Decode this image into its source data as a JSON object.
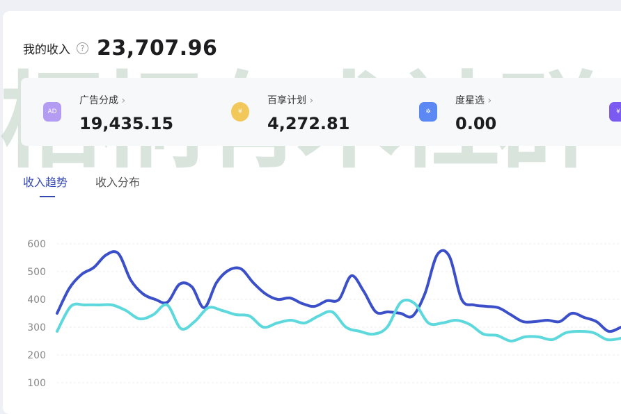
{
  "summary": {
    "label": "我的收入",
    "help_icon": "question-circle-icon",
    "value": "23,707.96"
  },
  "watermark": "梧桐有术社群",
  "stats": [
    {
      "name": "广告分成",
      "value": "19,435.15",
      "icon": "ad-icon",
      "color": "#a88cf0"
    },
    {
      "name": "百享计划",
      "value": "4,272.81",
      "icon": "money-bag-icon",
      "color": "#f3c85a"
    },
    {
      "name": "度星选",
      "value": "0.00",
      "icon": "shop-bag-icon",
      "color": "#4d7cf0"
    },
    {
      "name": "",
      "value": "",
      "icon": "yuan-icon",
      "color": "#7a5af0"
    }
  ],
  "tabs": [
    {
      "label": "收入趋势",
      "active": true
    },
    {
      "label": "收入分布",
      "active": false
    }
  ],
  "chart_data": {
    "type": "line",
    "yticks": [
      "600",
      "500",
      "400",
      "300",
      "200",
      "100"
    ],
    "ylim": [
      100,
      600
    ],
    "grid": true,
    "series": [
      {
        "color": "#3a4fc8",
        "values": [
          350,
          440,
          490,
          515,
          560,
          565,
          470,
          420,
          400,
          390,
          455,
          445,
          370,
          460,
          505,
          510,
          460,
          420,
          400,
          405,
          385,
          375,
          395,
          400,
          485,
          430,
          355,
          355,
          350,
          340,
          420,
          560,
          555,
          400,
          380,
          375,
          370,
          345,
          320,
          320,
          325,
          320,
          350,
          335,
          320,
          285,
          300
        ]
      },
      {
        "color": "#5dd8dc",
        "values": [
          285,
          375,
          380,
          380,
          380,
          360,
          330,
          345,
          380,
          295,
          320,
          370,
          360,
          345,
          340,
          300,
          315,
          325,
          315,
          340,
          355,
          300,
          285,
          275,
          300,
          390,
          385,
          315,
          315,
          325,
          310,
          275,
          270,
          250,
          265,
          265,
          255,
          280,
          285,
          280,
          255,
          260
        ]
      }
    ]
  }
}
